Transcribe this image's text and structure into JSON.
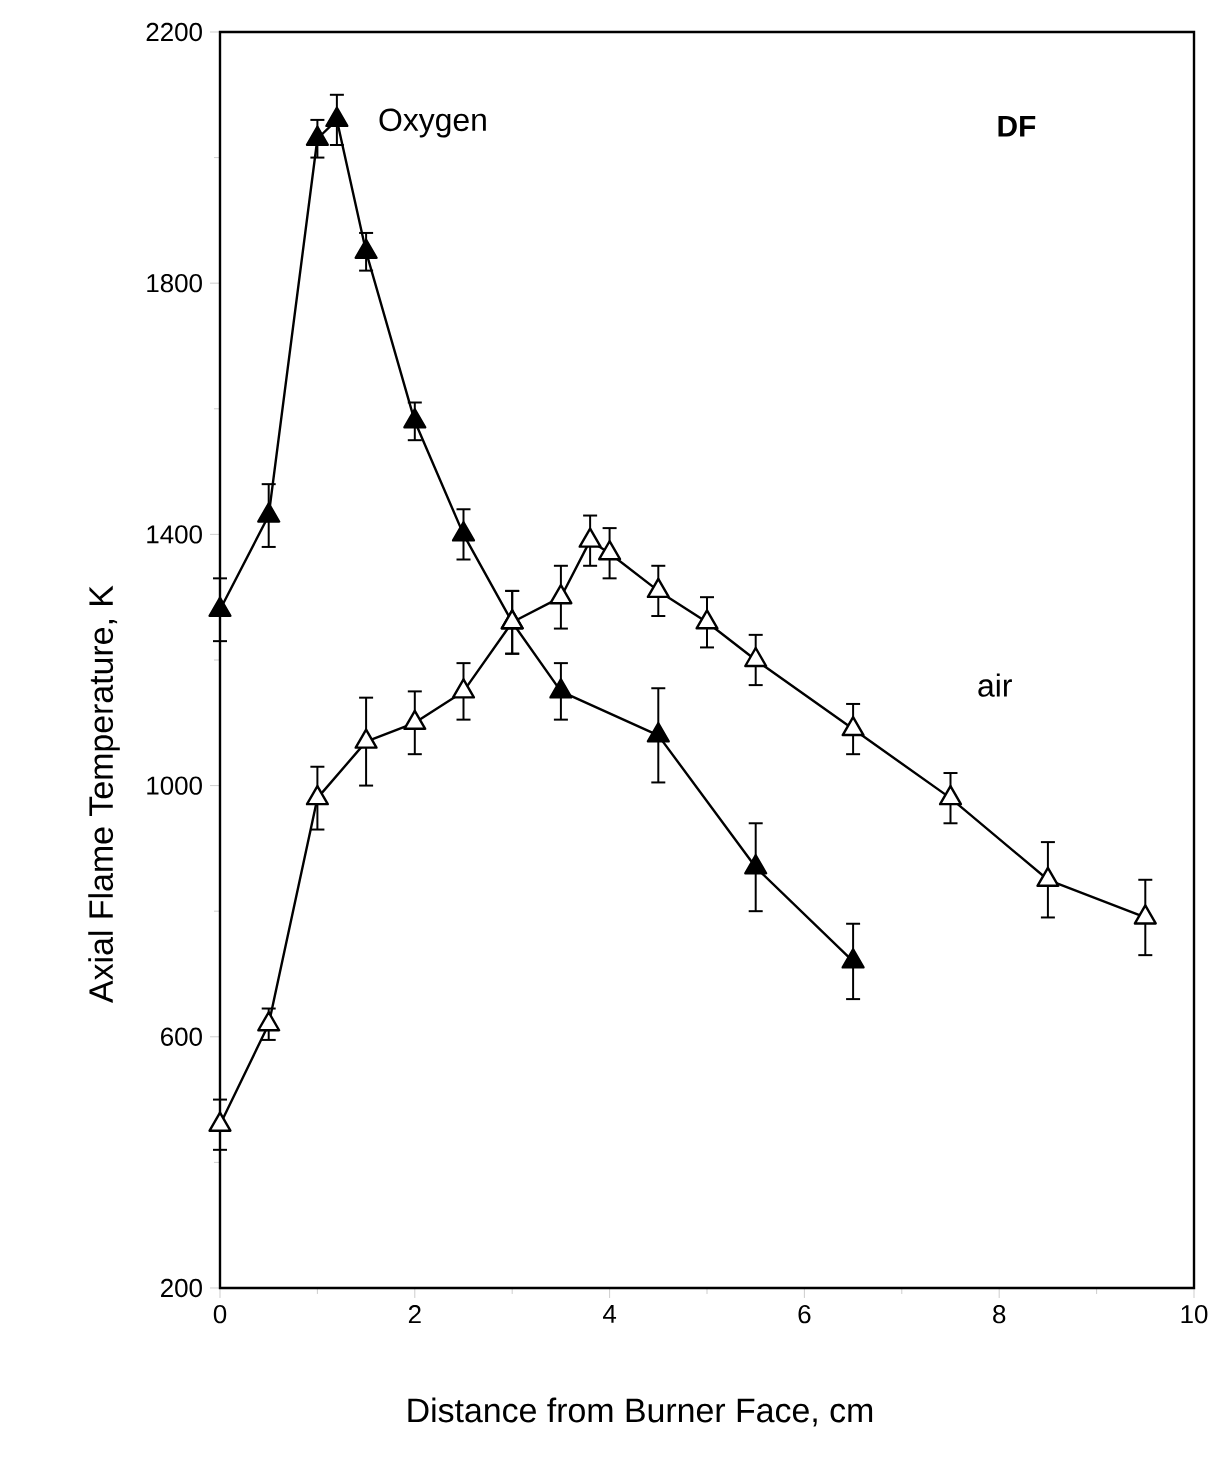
{
  "chart_data": {
    "type": "line",
    "xlabel": "Distance from Burner Face, cm",
    "ylabel": "Axial Flame Temperature, K",
    "annotations": [
      "DF"
    ],
    "xlim": [
      0,
      10
    ],
    "xticks": [
      0,
      2,
      4,
      6,
      8,
      10
    ],
    "ylim": [
      200,
      2200
    ],
    "yticks": [
      200,
      600,
      1000,
      1400,
      1800,
      2200
    ],
    "grid": false,
    "marker": "triangle",
    "line_style": "solid",
    "series": [
      {
        "name": "Oxygen",
        "color": "#000000",
        "x": [
          0,
          0.5,
          1.0,
          1.2,
          1.5,
          2.0,
          2.5,
          3.0,
          3.5,
          4.5,
          5.5,
          6.5
        ],
        "values": [
          1280,
          1430,
          2030,
          2060,
          1850,
          1580,
          1400,
          1260,
          1150,
          1080,
          870,
          720
        ],
        "errors": [
          50,
          50,
          30,
          40,
          30,
          30,
          40,
          50,
          45,
          75,
          70,
          60
        ]
      },
      {
        "name": "air",
        "color": "#000000",
        "x": [
          0,
          0.5,
          1.0,
          1.5,
          2.0,
          2.5,
          3.0,
          3.5,
          3.8,
          4.0,
          4.5,
          5.0,
          5.5,
          6.5,
          7.5,
          8.5,
          9.5
        ],
        "values": [
          460,
          620,
          980,
          1070,
          1100,
          1150,
          1260,
          1300,
          1390,
          1370,
          1310,
          1260,
          1200,
          1090,
          980,
          850,
          790
        ],
        "errors": [
          40,
          25,
          50,
          70,
          50,
          45,
          50,
          50,
          40,
          40,
          40,
          40,
          40,
          40,
          40,
          60,
          60
        ]
      }
    ]
  }
}
